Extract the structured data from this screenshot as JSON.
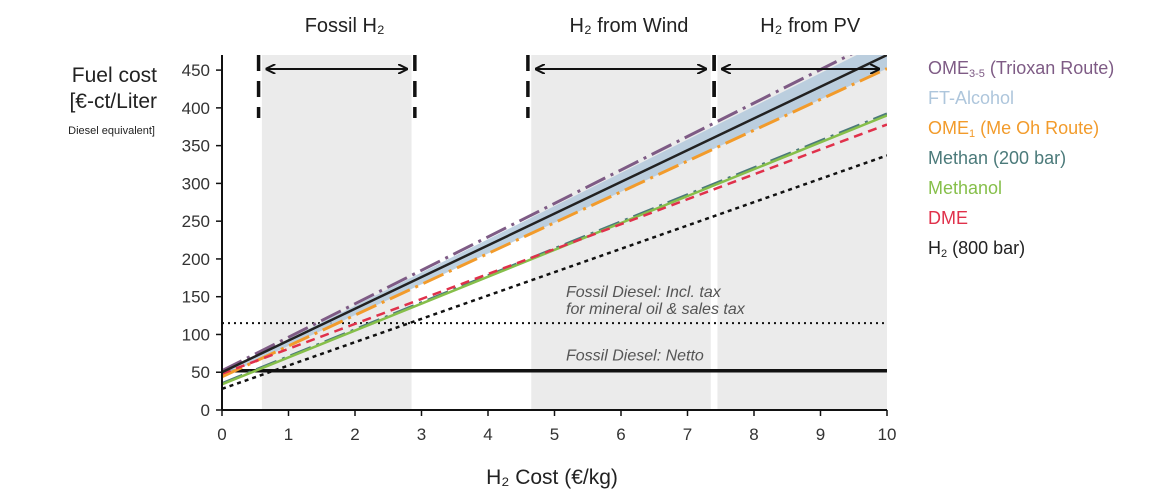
{
  "chart_data": {
    "type": "line",
    "xlabel": "H₂ Cost (€/kg)",
    "ylabel": {
      "line1": "Fuel cost",
      "line2": "[€-ct/Liter",
      "line3": "Diesel equivalent]"
    },
    "xlim": [
      0,
      10
    ],
    "ylim": [
      0,
      470
    ],
    "x_ticks": [
      "0",
      "1",
      "2",
      "3",
      "4",
      "5",
      "6",
      "7",
      "8",
      "9",
      "10"
    ],
    "y_ticks": [
      "0",
      "50",
      "100",
      "150",
      "200",
      "250",
      "300",
      "350",
      "400",
      "450"
    ],
    "grid": false,
    "regions": [
      {
        "label": "Fossil H₂",
        "x_start": 0.6,
        "x_end": 2.85,
        "arrow_start": 0.55,
        "arrow_end": 2.9
      },
      {
        "label": "H₂ from Wind",
        "x_start": 4.65,
        "x_end": 7.35,
        "arrow_start": 4.6,
        "arrow_end": 7.4
      },
      {
        "label": "H₂ from PV",
        "x_start": 7.45,
        "x_end": 10.0,
        "arrow_start": 7.4,
        "arrow_end": 10.0
      }
    ],
    "reference_lines": [
      {
        "label": "Fossil Diesel: Incl. tax",
        "label2": "for mineral oil & sales tax",
        "y": 115,
        "style": "dotted"
      },
      {
        "label": "Fossil Diesel: Netto",
        "y": 52,
        "style": "solid"
      }
    ],
    "band": {
      "name": "FT-Alcohol",
      "color": "#b3c9dc",
      "y_low_at_0": 44,
      "y_low_at_10": 452,
      "y_high_at_0": 50,
      "y_high_at_10": 490
    },
    "series": [
      {
        "name": "OME3-5 (Trioxan Route)",
        "label_main": "OME",
        "label_sub": "3-5",
        "label_rest": " (Trioxan Route)",
        "color": "#7e5b85",
        "dash": "22,6,3,6",
        "width": 3,
        "x": [
          0,
          10
        ],
        "y": [
          52,
          495
        ]
      },
      {
        "name": "FT-Alcohol",
        "label_main": "FT-Alcohol",
        "label_sub": "",
        "label_rest": "",
        "color": "#aec6dc",
        "dash": "",
        "width": 0,
        "x": [
          0,
          10
        ],
        "y": [
          47,
          470
        ]
      },
      {
        "name": "OME1 (Me Oh Route)",
        "label_main": "OME",
        "label_sub": "1",
        "label_rest": " (Me Oh Route)",
        "color": "#f29b2b",
        "dash": "22,6,3,6",
        "width": 3,
        "x": [
          0,
          10
        ],
        "y": [
          44,
          452
        ]
      },
      {
        "name": "Methan (200 bar)",
        "label_main": "Methan (200 bar)",
        "label_sub": "",
        "label_rest": "",
        "color": "#4b7a7a",
        "dash": "22,6,3,6",
        "width": 3,
        "x": [
          0,
          10
        ],
        "y": [
          35,
          392
        ]
      },
      {
        "name": "Methanol",
        "label_main": "Methanol",
        "label_sub": "",
        "label_rest": "",
        "color": "#86bf4a",
        "dash": "",
        "width": 2.5,
        "x": [
          0,
          10
        ],
        "y": [
          34,
          390
        ]
      },
      {
        "name": "DME",
        "label_main": "DME",
        "label_sub": "",
        "label_rest": "",
        "color": "#e0314b",
        "dash": "9,6",
        "width": 2.5,
        "x": [
          0,
          10
        ],
        "y": [
          48,
          378
        ]
      },
      {
        "name": "H2 (800 bar)",
        "label_main": "H",
        "label_sub": "2",
        "label_rest": " (800 bar)",
        "color": "#222222",
        "dash": "",
        "width": 2.5,
        "x": [
          0,
          10
        ],
        "y": [
          50,
          470
        ]
      },
      {
        "name": "H2 (800 bar) dotted",
        "label_main": "",
        "label_sub": "",
        "label_rest": "",
        "color": "#111111",
        "dash": "4,4",
        "width": 2.5,
        "x": [
          0,
          10
        ],
        "y": [
          28,
          337
        ]
      }
    ]
  }
}
